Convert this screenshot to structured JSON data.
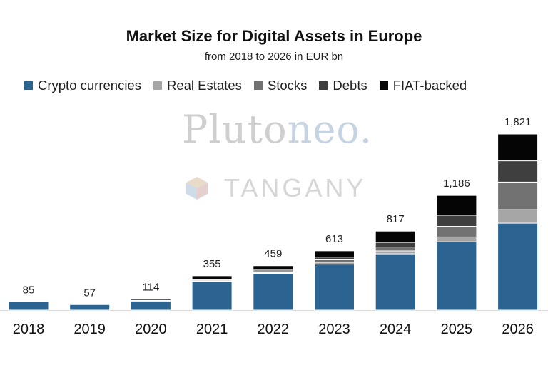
{
  "colors": {
    "Crypto currencies": "#2b6391",
    "Real Estates": "#a6a6a6",
    "Stocks": "#727272",
    "Debts": "#3f3f3f",
    "FIAT-backed": "#050505"
  },
  "watermarks": {
    "brand1_main": "Pluto",
    "brand1_accent": "neo.",
    "brand2": "TANGANY"
  },
  "chart_data": {
    "type": "bar",
    "stacked": true,
    "title": "Market Size for Digital Assets in Europe",
    "subtitle": "from 2018 to 2026 in EUR bn",
    "categories": [
      "2018",
      "2019",
      "2020",
      "2021",
      "2022",
      "2023",
      "2024",
      "2025",
      "2026"
    ],
    "totals": [
      85,
      57,
      114,
      355,
      459,
      613,
      817,
      1186,
      1821
    ],
    "total_labels": [
      "85",
      "57",
      "114",
      "355",
      "459",
      "613",
      "817",
      "1,186",
      "1,821"
    ],
    "series": [
      {
        "name": "Crypto currencies",
        "values": [
          85,
          57,
          94,
          295,
          380,
          475,
          582,
          706,
          899
        ]
      },
      {
        "name": "Real Estates",
        "values": [
          0,
          0,
          2,
          5,
          8,
          20,
          30,
          50,
          140
        ]
      },
      {
        "name": "Stocks",
        "values": [
          0,
          0,
          3,
          5,
          10,
          25,
          40,
          110,
          285
        ]
      },
      {
        "name": "Debts",
        "values": [
          0,
          0,
          3,
          10,
          16,
          28,
          48,
          115,
          220
        ]
      },
      {
        "name": "FIAT-backed",
        "values": [
          0,
          0,
          12,
          40,
          45,
          65,
          117,
          205,
          277
        ]
      }
    ],
    "ylim": [
      0,
      1821
    ],
    "grid": false,
    "legend_position": "top"
  }
}
